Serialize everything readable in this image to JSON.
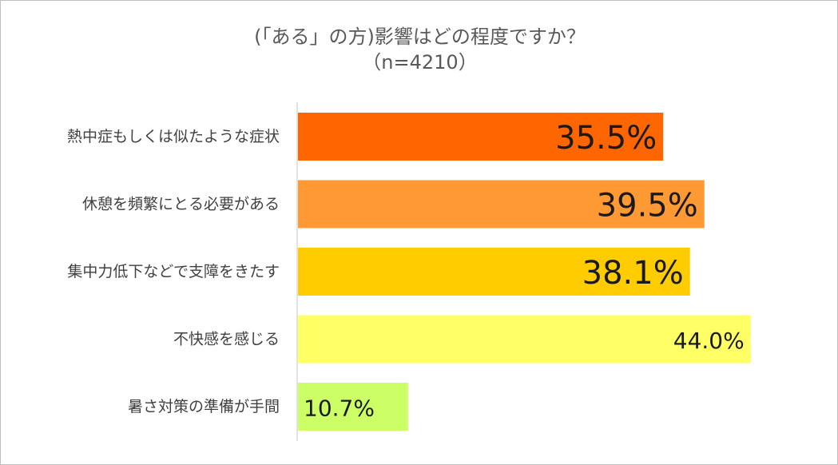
{
  "chart_data": {
    "type": "bar",
    "orientation": "horizontal",
    "title": "(「ある」の方)影響はどの程度ですか？",
    "subtitle": "（n=4210）",
    "categories": [
      "熱中症もしくは似たような症状",
      "休憩を頻繁にとる必要がある",
      "集中力低下などで支障をきたす",
      "不快感を感じる",
      "暑さ対策の準備が手間"
    ],
    "values": [
      35.5,
      39.5,
      38.1,
      44.0,
      10.7
    ],
    "value_labels": [
      "35.5%",
      "39.5%",
      "38.1%",
      "44.0%",
      "10.7%"
    ],
    "colors": [
      "#ff6600",
      "#ff9933",
      "#ffcc00",
      "#ffff66",
      "#ccff66"
    ],
    "xlim": [
      0,
      48
    ],
    "grid": false,
    "legend": "none"
  }
}
